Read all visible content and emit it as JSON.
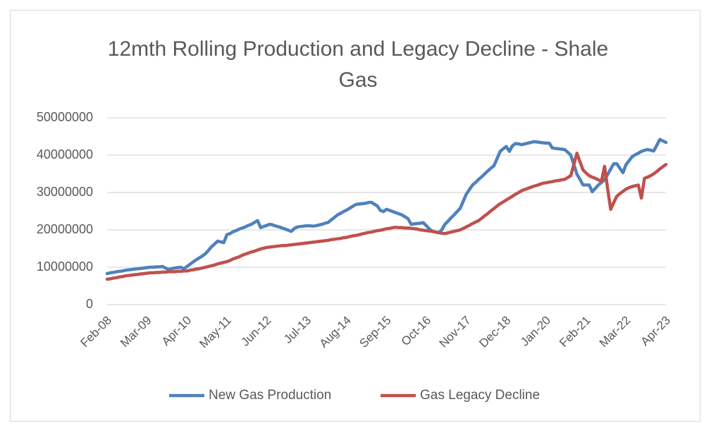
{
  "chart_data": {
    "type": "line",
    "title": "12mth Rolling Production and Legacy Decline - Shale Gas",
    "categories": [
      "Feb-08",
      null,
      null,
      null,
      null,
      null,
      null,
      null,
      null,
      null,
      null,
      null,
      null,
      "Mar-09",
      null,
      null,
      null,
      null,
      null,
      null,
      null,
      null,
      null,
      null,
      null,
      null,
      "Apr-10",
      null,
      null,
      null,
      null,
      null,
      null,
      null,
      null,
      null,
      null,
      null,
      null,
      "May-11",
      null,
      null,
      null,
      null,
      null,
      null,
      null,
      null,
      null,
      null,
      null,
      null,
      "Jun-12",
      null,
      null,
      null,
      null,
      null,
      null,
      null,
      null,
      null,
      null,
      null,
      null,
      "Jul-13",
      null,
      null,
      null,
      null,
      null,
      null,
      null,
      null,
      null,
      null,
      null,
      null,
      "Aug-14",
      null,
      null,
      null,
      null,
      null,
      null,
      null,
      null,
      null,
      null,
      null,
      null,
      "Sep-15",
      null,
      null,
      null,
      null,
      null,
      null,
      null,
      null,
      null,
      null,
      null,
      null,
      "Oct-16",
      null,
      null,
      null,
      null,
      null,
      null,
      null,
      null,
      null,
      null,
      null,
      null,
      "Nov-17",
      null,
      null,
      null,
      null,
      null,
      null,
      null,
      null,
      null,
      null,
      null,
      null,
      "Dec-18",
      null,
      null,
      null,
      null,
      null,
      null,
      null,
      null,
      null,
      null,
      null,
      null,
      "Jan-20",
      null,
      null,
      null,
      null,
      null,
      null,
      null,
      null,
      null,
      null,
      null,
      null,
      "Feb-21",
      null,
      null,
      null,
      null,
      null,
      null,
      null,
      null,
      null,
      null,
      null,
      null,
      "Mar-22",
      null,
      null,
      null,
      null,
      null,
      null,
      null,
      null,
      null,
      null,
      null,
      null,
      "Apr-23"
    ],
    "series": [
      {
        "name": "New Gas Production",
        "color": "#4f81bd",
        "values": [
          8300000,
          8500000,
          8600000,
          8800000,
          8900000,
          9000000,
          9200000,
          9300000,
          9400000,
          9500000,
          9600000,
          9700000,
          9800000,
          9900000,
          10000000,
          10000000,
          10100000,
          10100000,
          10200000,
          9800000,
          9400000,
          9600000,
          9800000,
          9900000,
          10000000,
          9600000,
          10200000,
          10800000,
          11400000,
          12000000,
          12500000,
          13000000,
          13600000,
          14500000,
          15500000,
          16200000,
          17000000,
          16800000,
          16600000,
          18700000,
          19000000,
          19500000,
          19800000,
          20200000,
          20500000,
          20800000,
          21200000,
          21500000,
          22000000,
          22500000,
          20600000,
          20900000,
          21200000,
          21500000,
          21300000,
          21000000,
          20800000,
          20500000,
          20200000,
          19900000,
          19600000,
          20400000,
          20800000,
          20900000,
          21000000,
          21100000,
          21100000,
          21000000,
          21100000,
          21300000,
          21500000,
          21800000,
          22000000,
          22700000,
          23300000,
          24000000,
          24400000,
          24900000,
          25300000,
          25800000,
          26300000,
          26800000,
          26900000,
          27000000,
          27100000,
          27300000,
          27400000,
          26900000,
          26400000,
          25200000,
          24900000,
          25500000,
          25200000,
          24900000,
          24600000,
          24300000,
          24000000,
          23500000,
          23000000,
          21500000,
          21600000,
          21700000,
          21800000,
          21900000,
          21100000,
          20200000,
          19600000,
          19400000,
          19200000,
          20000000,
          21500000,
          22300000,
          23200000,
          24000000,
          24900000,
          25800000,
          27700000,
          29600000,
          30800000,
          32000000,
          32700000,
          33500000,
          34200000,
          35000000,
          35800000,
          36500000,
          37200000,
          39100000,
          41000000,
          41700000,
          42300000,
          41000000,
          42500000,
          43100000,
          43000000,
          42800000,
          43000000,
          43200000,
          43400000,
          43600000,
          43500000,
          43400000,
          43300000,
          43200000,
          43200000,
          41900000,
          41800000,
          41700000,
          41600000,
          41500000,
          40800000,
          40000000,
          37500000,
          34900000,
          33500000,
          32000000,
          32000000,
          32000000,
          30200000,
          31100000,
          32000000,
          32700000,
          33400000,
          34800000,
          36300000,
          37700000,
          37700000,
          36500000,
          35300000,
          37500000,
          38500000,
          39600000,
          40100000,
          40500000,
          41000000,
          41300000,
          41500000,
          41300000,
          41100000,
          42600000,
          44200000,
          43800000,
          43400000
        ]
      },
      {
        "name": "Gas Legacy Decline",
        "color": "#c0504d",
        "values": [
          6800000,
          6900000,
          7100000,
          7200000,
          7400000,
          7500000,
          7700000,
          7800000,
          7900000,
          8000000,
          8100000,
          8200000,
          8300000,
          8400000,
          8500000,
          8500000,
          8600000,
          8600000,
          8700000,
          8700000,
          8800000,
          8800000,
          8800000,
          8900000,
          8900000,
          9000000,
          9000000,
          9200000,
          9300000,
          9500000,
          9600000,
          9800000,
          10000000,
          10200000,
          10400000,
          10600000,
          10900000,
          11100000,
          11300000,
          11500000,
          11800000,
          12200000,
          12500000,
          12800000,
          13200000,
          13500000,
          13800000,
          14100000,
          14300000,
          14600000,
          14900000,
          15100000,
          15300000,
          15400000,
          15500000,
          15600000,
          15700000,
          15800000,
          15800000,
          15900000,
          16000000,
          16100000,
          16200000,
          16300000,
          16400000,
          16500000,
          16600000,
          16700000,
          16800000,
          16900000,
          17000000,
          17100000,
          17200000,
          17400000,
          17500000,
          17600000,
          17700000,
          17900000,
          18000000,
          18200000,
          18400000,
          18500000,
          18700000,
          18900000,
          19100000,
          19300000,
          19400000,
          19600000,
          19800000,
          19900000,
          20100000,
          20300000,
          20400000,
          20600000,
          20700000,
          20600000,
          20600000,
          20500000,
          20500000,
          20400000,
          20300000,
          20200000,
          20000000,
          19900000,
          19800000,
          19700000,
          19600000,
          19400000,
          19300000,
          19100000,
          19000000,
          19200000,
          19400000,
          19600000,
          19800000,
          20000000,
          20400000,
          20800000,
          21200000,
          21700000,
          22100000,
          22500000,
          23100000,
          23800000,
          24400000,
          25100000,
          25700000,
          26400000,
          27000000,
          27500000,
          28000000,
          28500000,
          29000000,
          29500000,
          30000000,
          30500000,
          30800000,
          31100000,
          31400000,
          31700000,
          31900000,
          32200000,
          32500000,
          32600000,
          32800000,
          32900000,
          33100000,
          33200000,
          33400000,
          33500000,
          34000000,
          34500000,
          37500000,
          40500000,
          38200000,
          36000000,
          35200000,
          34500000,
          34100000,
          33800000,
          33400000,
          33000000,
          37000000,
          31000000,
          25500000,
          27300000,
          29000000,
          29700000,
          30300000,
          30900000,
          31300000,
          31600000,
          31800000,
          32000000,
          28500000,
          33800000,
          34100000,
          34500000,
          35000000,
          35600000,
          36300000,
          36900000,
          37500000
        ]
      }
    ],
    "ylim": [
      0,
      50000000
    ],
    "yticks": [
      0,
      10000000,
      20000000,
      30000000,
      40000000,
      50000000
    ],
    "grid": true,
    "legend": "bottom"
  }
}
